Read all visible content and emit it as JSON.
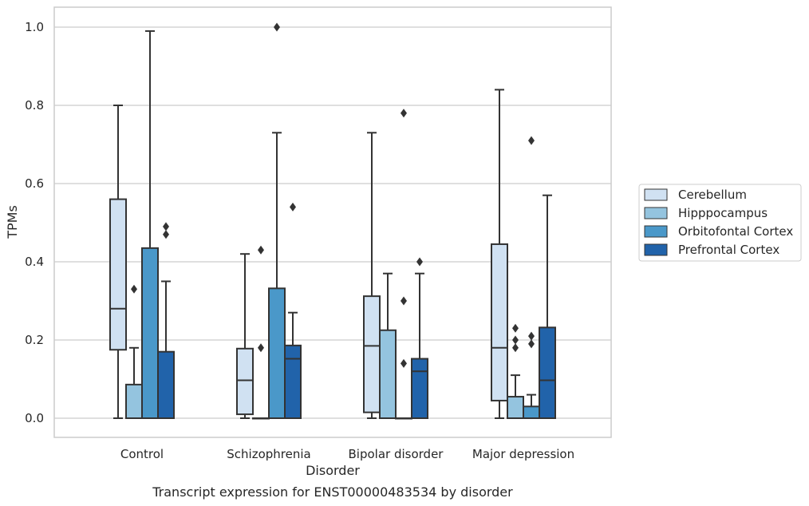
{
  "caption": "Transcript expression for ENST00000483534 by disorder",
  "chart_data": {
    "type": "boxplot",
    "xlabel": "Disorder",
    "ylabel": "TPMs",
    "ylim": [
      -0.05,
      1.05
    ],
    "yticks": [
      "0.0",
      "0.2",
      "0.4",
      "0.6",
      "0.8",
      "1.0"
    ],
    "grid": "horizontal",
    "legend_position": "right",
    "categories": [
      "Control",
      "Schizophrenia",
      "Bipolar disorder",
      "Major depression"
    ],
    "series": [
      {
        "name": "Cerebellum",
        "color": "#d0e1f2",
        "boxes": [
          {
            "whislo": 0.0,
            "q1": 0.175,
            "med": 0.28,
            "q3": 0.56,
            "whishi": 0.8,
            "fliers": []
          },
          {
            "whislo": 0.0,
            "q1": 0.01,
            "med": 0.097,
            "q3": 0.178,
            "whishi": 0.42,
            "fliers": []
          },
          {
            "whislo": 0.0,
            "q1": 0.015,
            "med": 0.185,
            "q3": 0.312,
            "whishi": 0.73,
            "fliers": []
          },
          {
            "whislo": 0.0,
            "q1": 0.045,
            "med": 0.18,
            "q3": 0.445,
            "whishi": 0.84,
            "fliers": []
          }
        ]
      },
      {
        "name": "Hipppocampus",
        "color": "#94c4df",
        "boxes": [
          {
            "whislo": 0.0,
            "q1": 0.0,
            "med": 0.0,
            "q3": 0.086,
            "whishi": 0.18,
            "fliers": [
              0.33
            ]
          },
          {
            "whislo": 0.0,
            "q1": 0.0,
            "med": 0.0,
            "q3": 0.0,
            "whishi": 0.0,
            "fliers": [
              0.18,
              0.43
            ]
          },
          {
            "whislo": 0.0,
            "q1": 0.0,
            "med": 0.0,
            "q3": 0.225,
            "whishi": 0.37,
            "fliers": []
          },
          {
            "whislo": 0.0,
            "q1": 0.0,
            "med": 0.0,
            "q3": 0.055,
            "whishi": 0.11,
            "fliers": [
              0.18,
              0.2,
              0.23
            ]
          }
        ]
      },
      {
        "name": "Orbitofontal Cortex",
        "color": "#4a98c9",
        "boxes": [
          {
            "whislo": 0.0,
            "q1": 0.0,
            "med": 0.0,
            "q3": 0.435,
            "whishi": 0.99,
            "fliers": []
          },
          {
            "whislo": 0.0,
            "q1": 0.0,
            "med": 0.0,
            "q3": 0.332,
            "whishi": 0.73,
            "fliers": [
              1.0
            ]
          },
          {
            "whislo": 0.0,
            "q1": 0.0,
            "med": 0.0,
            "q3": 0.0,
            "whishi": 0.0,
            "fliers": [
              0.14,
              0.3,
              0.78
            ]
          },
          {
            "whislo": 0.0,
            "q1": 0.0,
            "med": 0.0,
            "q3": 0.03,
            "whishi": 0.06,
            "fliers": [
              0.19,
              0.21,
              0.71
            ]
          }
        ]
      },
      {
        "name": "Prefrontal Cortex",
        "color": "#2163aa",
        "boxes": [
          {
            "whislo": 0.0,
            "q1": 0.0,
            "med": 0.0,
            "q3": 0.17,
            "whishi": 0.35,
            "fliers": [
              0.47,
              0.49
            ]
          },
          {
            "whislo": 0.0,
            "q1": 0.0,
            "med": 0.152,
            "q3": 0.186,
            "whishi": 0.27,
            "fliers": [
              0.54
            ]
          },
          {
            "whislo": 0.0,
            "q1": 0.0,
            "med": 0.12,
            "q3": 0.152,
            "whishi": 0.37,
            "fliers": [
              0.4
            ]
          },
          {
            "whislo": 0.0,
            "q1": 0.0,
            "med": 0.097,
            "q3": 0.232,
            "whishi": 0.57,
            "fliers": []
          }
        ]
      }
    ]
  },
  "colors": {
    "edge": "#333333",
    "grid": "#cccccc",
    "frame": "#cccccc"
  }
}
